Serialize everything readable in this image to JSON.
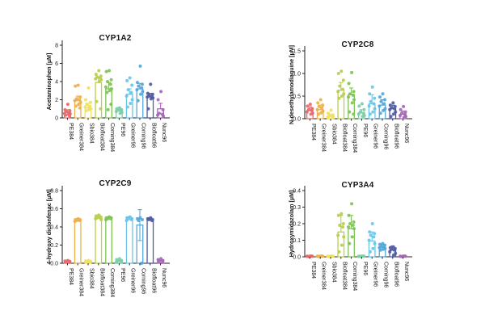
{
  "palette": [
    "#e8696b",
    "#eeb04b",
    "#f1e15c",
    "#b7cf49",
    "#7fc257",
    "#7bcfa6",
    "#69c6e7",
    "#54a7da",
    "#4f5ba4",
    "#a569b5"
  ],
  "axis_color": "#222222",
  "categories": [
    "PE384",
    "Greiner384",
    "Sbio384",
    "Biofloat384",
    "Corning384",
    "PE96",
    "Greiner96",
    "Corning96",
    "Biofloat96",
    "Nunc96"
  ],
  "chart_data": [
    {
      "type": "bar",
      "title": "CYP1A2",
      "ylabel": "Acetaminophen [µM]",
      "xlabel": "",
      "ylim": [
        0,
        8
      ],
      "yticks": [
        0,
        2,
        4,
        6,
        8
      ],
      "ytick_labels": [
        "0",
        "2",
        "4",
        "6",
        "8"
      ],
      "grid": false,
      "legend": "none",
      "categories": [
        "PE384",
        "Greiner384",
        "Sbio384",
        "Biofloat384",
        "Corning384",
        "PE96",
        "Greiner96",
        "Corning96",
        "Biofloat96",
        "Nunc96"
      ],
      "bars": [
        0.6,
        1.9,
        1.1,
        3.9,
        3.2,
        0.9,
        2.6,
        3.2,
        2.3,
        1.0
      ],
      "errors": [
        0.3,
        0.5,
        0.5,
        0.6,
        0.7,
        0.25,
        0.6,
        0.6,
        0.4,
        0.6
      ],
      "points": [
        [
          1.5,
          0.9,
          0.8,
          0.7,
          0.6,
          0.5,
          0.45,
          0.4,
          0.3,
          0.2
        ],
        [
          3.6,
          3.5,
          2.3,
          2.1,
          2.0,
          1.9,
          1.7,
          1.5,
          1.3,
          1.1
        ],
        [
          3.3,
          2.0,
          1.7,
          1.5,
          1.3,
          1.2,
          1.0,
          0.9,
          0.8
        ],
        [
          5.2,
          4.8,
          4.6,
          4.5,
          4.4,
          4.3,
          4.2,
          4.0,
          1.8,
          1.0
        ],
        [
          5.2,
          5.1,
          4.2,
          4.0,
          3.7,
          3.4,
          3.2,
          3.0,
          2.8,
          1.5,
          0.9
        ],
        [
          1.1,
          1.0,
          0.9,
          0.85,
          0.8,
          0.7,
          0.6,
          0.5
        ],
        [
          4.4,
          4.1,
          3.6,
          3.1,
          2.8,
          2.4,
          2.0,
          1.6,
          1.2
        ],
        [
          5.7,
          3.9,
          3.7,
          3.5,
          3.3,
          3.1,
          2.9,
          2.6,
          1.9
        ],
        [
          3.7,
          2.7,
          2.6,
          2.5,
          2.4,
          2.3,
          2.2,
          2.1,
          1.0
        ],
        [
          2.9,
          2.0,
          0.9,
          0.5,
          0.4,
          0.3,
          0.2
        ]
      ]
    },
    {
      "type": "bar",
      "title": "CYP2C8",
      "ylabel": "N-desethylamodiaquine [µM]",
      "xlabel": "",
      "ylim": [
        0,
        1.5
      ],
      "yticks": [
        0,
        0.5,
        1.0,
        1.5
      ],
      "ytick_labels": [
        "0.0",
        "0.5",
        "1.0",
        "1.5"
      ],
      "grid": false,
      "legend": "none",
      "categories": [
        "PE384",
        "Greiner384",
        "Sbio384",
        "Biofloat384",
        "Corning384",
        "PE96",
        "Greiner96",
        "Corning96",
        "Biofloat96",
        "Nunc96"
      ],
      "bars": [
        0.18,
        0.2,
        0.05,
        0.63,
        0.53,
        0.13,
        0.33,
        0.3,
        0.22,
        0.1
      ],
      "errors": [
        0.08,
        0.1,
        0.05,
        0.17,
        0.15,
        0.07,
        0.2,
        0.12,
        0.08,
        0.07
      ],
      "points": [
        [
          0.32,
          0.28,
          0.22,
          0.2,
          0.18,
          0.15,
          0.12,
          0.1
        ],
        [
          0.42,
          0.35,
          0.3,
          0.27,
          0.24,
          0.2,
          0.17,
          0.13,
          0.1
        ],
        [
          0.19,
          0.12,
          0.08,
          0.06,
          0.05,
          0.03,
          0.02
        ],
        [
          1.05,
          1.0,
          0.85,
          0.72,
          0.65,
          0.6,
          0.55,
          0.5,
          0.45
        ],
        [
          1.02,
          0.78,
          0.6,
          0.55,
          0.52,
          0.48,
          0.42,
          0.35,
          0.15,
          0.1
        ],
        [
          0.33,
          0.28,
          0.2,
          0.15,
          0.12,
          0.1,
          0.07,
          0.05
        ],
        [
          0.7,
          0.55,
          0.45,
          0.38,
          0.33,
          0.28,
          0.22,
          0.15,
          0.1
        ],
        [
          0.55,
          0.48,
          0.42,
          0.38,
          0.33,
          0.28,
          0.22,
          0.18,
          0.12
        ],
        [
          0.35,
          0.3,
          0.27,
          0.24,
          0.22,
          0.2,
          0.15,
          0.1,
          0.05
        ],
        [
          0.27,
          0.2,
          0.15,
          0.12,
          0.1,
          0.07,
          0.05,
          0.03
        ]
      ]
    },
    {
      "type": "bar",
      "title": "CYP2C9",
      "ylabel": "4-hydroxy diclonfenac [µM]",
      "xlabel": "",
      "ylim": [
        0,
        0.8
      ],
      "yticks": [
        0,
        0.2,
        0.4,
        0.6,
        0.8
      ],
      "ytick_labels": [
        "0.0",
        "0.2",
        "0.4",
        "0.6",
        "0.8"
      ],
      "grid": false,
      "legend": "none",
      "categories": [
        "PE384",
        "Greiner384",
        "Sbio384",
        "Biofloat384",
        "Corning384",
        "PE96",
        "Greiner96",
        "Corning96",
        "Biofloat96",
        "Nunc96"
      ],
      "bars": [
        0.02,
        0.47,
        0.02,
        0.5,
        0.49,
        0.03,
        0.49,
        0.42,
        0.48,
        0.03
      ],
      "errors": [
        0.01,
        0.02,
        0.01,
        0.03,
        0.02,
        0.01,
        0.02,
        0.17,
        0.02,
        0.01
      ],
      "errors_down": [
        0,
        0,
        0,
        0,
        0,
        0,
        0,
        0.17,
        0,
        0
      ],
      "points": [
        [
          0.03,
          0.025,
          0.02,
          0.015,
          0.01
        ],
        [
          0.49,
          0.48,
          0.48,
          0.47,
          0.47,
          0.46
        ],
        [
          0.03,
          0.025,
          0.02,
          0.015,
          0.01
        ],
        [
          0.53,
          0.52,
          0.51,
          0.5,
          0.5,
          0.49,
          0.48
        ],
        [
          0.51,
          0.5,
          0.5,
          0.49,
          0.49,
          0.48
        ],
        [
          0.05,
          0.04,
          0.03,
          0.025,
          0.02,
          0.01
        ],
        [
          0.51,
          0.5,
          0.49,
          0.49,
          0.48,
          0.47
        ],
        [
          0.5,
          0.49,
          0.48,
          0.47,
          0.0
        ],
        [
          0.5,
          0.49,
          0.48,
          0.48,
          0.47
        ],
        [
          0.05,
          0.04,
          0.03,
          0.02,
          0.01
        ]
      ]
    },
    {
      "type": "bar",
      "title": "CYP3A4",
      "ylabel": "Hydroxymidazolam [µM]",
      "xlabel": "",
      "ylim": [
        0,
        0.4
      ],
      "yticks": [
        0,
        0.1,
        0.2,
        0.3,
        0.4
      ],
      "ytick_labels": [
        "0.0",
        "0.1",
        "0.2",
        "0.3",
        "0.4"
      ],
      "grid": false,
      "legend": "none",
      "categories": [
        "PE384",
        "Greiner384",
        "Sbio384",
        "Biofloat384",
        "Corning384",
        "PE96",
        "Greiner96",
        "Corning96",
        "Biofloat96",
        "Nunc96"
      ],
      "bars": [
        0.003,
        0.003,
        0.003,
        0.15,
        0.17,
        0.003,
        0.095,
        0.055,
        0.04,
        0.003
      ],
      "errors": [
        0.002,
        0.002,
        0.002,
        0.1,
        0.08,
        0.002,
        0.055,
        0.02,
        0.025,
        0.002
      ],
      "points": [
        [
          0.004,
          0.003,
          0.003,
          0.002,
          0.004,
          0.003
        ],
        [
          0.004,
          0.003,
          0.003,
          0.002,
          0.004,
          0.003
        ],
        [
          0.004,
          0.003,
          0.003,
          0.002,
          0.004,
          0.003
        ],
        [
          0.26,
          0.25,
          0.2,
          0.19,
          0.18,
          0.13,
          0.12,
          0.07,
          0.03
        ],
        [
          0.32,
          0.25,
          0.21,
          0.2,
          0.19,
          0.18,
          0.17,
          0.12,
          0.08
        ],
        [
          0.004,
          0.003,
          0.003,
          0.002,
          0.004,
          0.003
        ],
        [
          0.2,
          0.15,
          0.14,
          0.13,
          0.12,
          0.1,
          0.08,
          0.05,
          0.03
        ],
        [
          0.08,
          0.075,
          0.07,
          0.065,
          0.06,
          0.055,
          0.05,
          0.045,
          0.04
        ],
        [
          0.06,
          0.055,
          0.05,
          0.045,
          0.04,
          0.03,
          0.02,
          0.01
        ],
        [
          0.004,
          0.003,
          0.003,
          0.002,
          0.004,
          0.003
        ]
      ]
    }
  ]
}
